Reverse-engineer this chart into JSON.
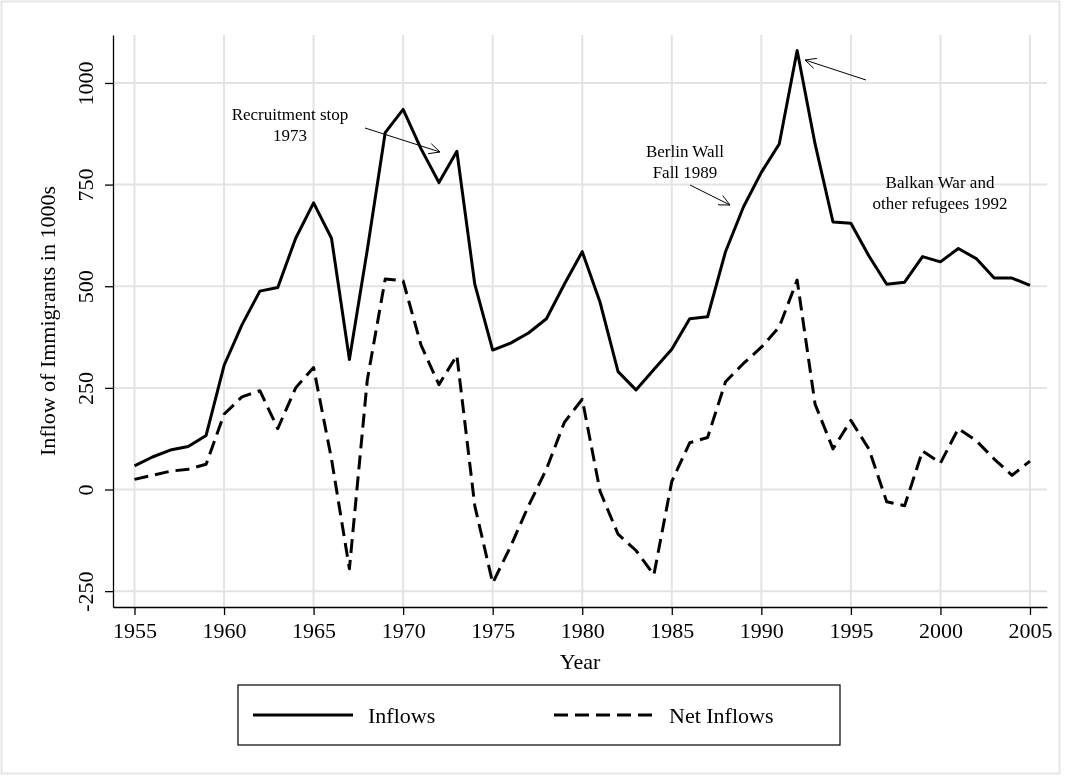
{
  "chart_data": {
    "type": "line",
    "xlabel": "Year",
    "ylabel": "Inflow of Immigrants in 1000s",
    "x": [
      1955,
      1956,
      1957,
      1958,
      1959,
      1960,
      1961,
      1962,
      1963,
      1964,
      1965,
      1966,
      1967,
      1968,
      1969,
      1970,
      1971,
      1972,
      1973,
      1974,
      1975,
      1976,
      1977,
      1978,
      1979,
      1980,
      1981,
      1982,
      1983,
      1984,
      1985,
      1986,
      1987,
      1988,
      1989,
      1990,
      1991,
      1992,
      1993,
      1994,
      1995,
      1996,
      1997,
      1998,
      1999,
      2000,
      2001,
      2002,
      2003,
      2004,
      2005
    ],
    "series": [
      {
        "name": "Inflows",
        "color": "#000000",
        "line_style": "solid",
        "values": [
          58,
          80,
          97,
          106,
          133,
          305,
          405,
          488,
          497,
          618,
          705,
          618,
          320,
          590,
          878,
          935,
          838,
          755,
          832,
          505,
          343,
          360,
          385,
          420,
          505,
          585,
          460,
          290,
          245,
          295,
          345,
          420,
          425,
          585,
          695,
          780,
          850,
          1080,
          850,
          658,
          655,
          575,
          505,
          510,
          573,
          560,
          593,
          568,
          520,
          520,
          502
        ]
      },
      {
        "name": "Net Inflows",
        "color": "#000000",
        "line_style": "dashed",
        "values": [
          25,
          35,
          45,
          50,
          62,
          185,
          228,
          243,
          150,
          250,
          300,
          75,
          -195,
          270,
          518,
          513,
          355,
          258,
          330,
          -40,
          -230,
          -140,
          -40,
          50,
          165,
          222,
          -5,
          -110,
          -150,
          -210,
          20,
          115,
          128,
          265,
          310,
          350,
          400,
          515,
          210,
          100,
          170,
          100,
          -30,
          -40,
          95,
          65,
          150,
          120,
          75,
          35,
          70
        ]
      }
    ],
    "xlim": [
      1953.8,
      2005.95
    ],
    "xticks": [
      1955,
      1960,
      1965,
      1970,
      1975,
      1980,
      1985,
      1990,
      1995,
      2000,
      2005
    ],
    "ylim": [
      -289,
      1118
    ],
    "yticks": [
      {
        "value": -250,
        "label": "-250"
      },
      0,
      250,
      500,
      750,
      1000
    ],
    "grid": true,
    "legend": "bottom",
    "marker": "none",
    "annotations": [
      "Recruitment stop\n1973",
      "Berlin Wall\nFall 1989",
      "Balkan War and\nother refugees 1992"
    ]
  }
}
